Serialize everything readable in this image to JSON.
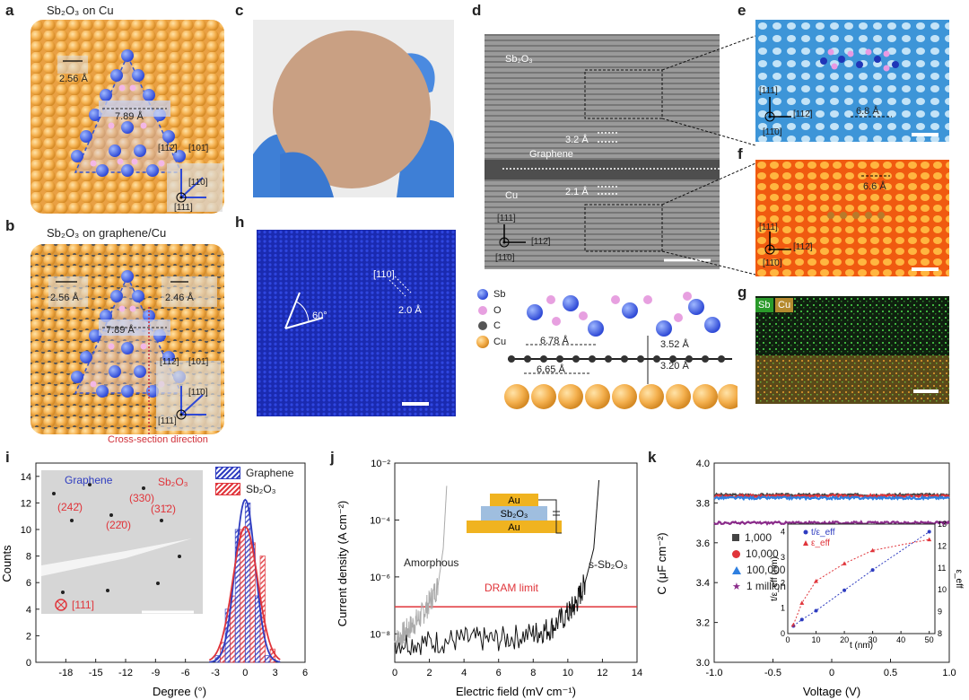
{
  "figure": {
    "panel_letters": {
      "a": "a",
      "b": "b",
      "c": "c",
      "d": "d",
      "e": "e",
      "f": "f",
      "g": "g",
      "h": "h",
      "i": "i",
      "j": "j",
      "k": "k"
    },
    "a": {
      "title": "Sb₂O₃ on Cu",
      "d1": "2.56 Å",
      "d2": "7.89 Å",
      "dir1": "[112̄]",
      "dir2": "[101̄]",
      "dir3": "[11̄0]",
      "dir4": "[111]"
    },
    "b": {
      "title": "Sb₂O₃ on graphene/Cu",
      "d1": "2.56 Å",
      "d2": "2.46 Å",
      "d3": "7.89 Å",
      "dir1": "[112̄]",
      "dir2": "[101̄]",
      "dir3": "[11̄0]",
      "dir4": "[111]",
      "cross": "Cross-section direction"
    },
    "d": {
      "sb2o3": "Sb₂O₃",
      "graphene": "Graphene",
      "cu": "Cu",
      "d32": "3.2 Å",
      "d21": "2.1 Å",
      "ax1": "[111]",
      "ax2": "[112̄]",
      "ax3": "[11̄0]"
    },
    "d_model": {
      "legend": [
        "Sb",
        "O",
        "C",
        "Cu"
      ],
      "d1": "6.78 Å",
      "d2": "6.65 Å",
      "d3": "3.52 Å",
      "d4": "3.20 Å"
    },
    "e": {
      "ax1": "[111]",
      "ax2": "[112̄]",
      "ax3": "[11̄0]",
      "dist": "6.8 Å"
    },
    "f": {
      "ax1": "[111]",
      "ax2": "[112̄]",
      "ax3": "[11̄0]",
      "dist": "6.6 Å"
    },
    "g": {
      "sb": "Sb",
      "cu": "Cu"
    },
    "h": {
      "angle": "60°",
      "dir": "[110]",
      "dist": "2.0 Å"
    }
  },
  "chart_data": [
    {
      "panel": "i",
      "type": "bar",
      "title": "",
      "xlabel": "Degree (°)",
      "ylabel": "Counts",
      "xlim": [
        -21,
        6
      ],
      "ylim": [
        0,
        15
      ],
      "xticks": [
        "-18",
        "-15",
        "-12",
        "-9",
        "-6",
        "-3",
        "0",
        "3",
        "6"
      ],
      "yticks": [
        "0",
        "2",
        "4",
        "6",
        "8",
        "10",
        "12",
        "14"
      ],
      "bin_centers": [
        -2.5,
        -1.5,
        -0.5,
        0.5,
        1.5,
        2.5
      ],
      "series": [
        {
          "name": "Graphene",
          "color": "#2e3cc0",
          "values": [
            0.5,
            4,
            10,
            12,
            5,
            0.5
          ]
        },
        {
          "name": "Sb₂O₃",
          "color": "#e0343a",
          "values": [
            1.5,
            5,
            10,
            9,
            8,
            1
          ]
        }
      ],
      "inset": {
        "graphene": "Graphene",
        "sb2o3": "Sb₂O₃",
        "spots": [
          "(330)",
          "(242̄)",
          "(31̄2)",
          "(22̄0)"
        ],
        "zone": "[111]"
      }
    },
    {
      "panel": "j",
      "type": "line",
      "xlabel": "Electric field (mV cm⁻¹)",
      "ylabel": "Current density (A cm⁻²)",
      "xlim": [
        0,
        14
      ],
      "ylog": true,
      "ylim_exp": [
        -9,
        -2
      ],
      "xticks": [
        "0",
        "2",
        "4",
        "6",
        "8",
        "10",
        "12",
        "14"
      ],
      "yticks": [
        "10⁻⁸",
        "10⁻⁶",
        "10⁻⁴",
        "10⁻²"
      ],
      "series": [
        {
          "name": "Amorphous",
          "color": "#aaaaaa",
          "x": [
            0,
            0.5,
            1,
            1.5,
            2,
            2.5,
            2.8,
            3.0
          ],
          "log_y": [
            -8.3,
            -8.0,
            -7.7,
            -7.4,
            -6.9,
            -6.3,
            -5.0,
            -2.8
          ]
        },
        {
          "name": "s-Sb₂O₃",
          "color": "#111111",
          "x": [
            0,
            2,
            4,
            6,
            8,
            9,
            10,
            10.5,
            11,
            11.5,
            11.8
          ],
          "log_y": [
            -8.3,
            -8.3,
            -8.2,
            -8.2,
            -8.0,
            -7.8,
            -7.3,
            -6.9,
            -6.2,
            -5.0,
            -2.6
          ]
        }
      ],
      "dram_limit": {
        "label": "DRAM limit",
        "log_y": -7.05,
        "color": "#e0343a"
      },
      "inset_layers": [
        "Au",
        "Sb₂O₃",
        "Au"
      ]
    },
    {
      "panel": "k",
      "type": "line",
      "xlabel": "Voltage (V)",
      "ylabel": "C (μF cm⁻²)",
      "xlim": [
        -1,
        1
      ],
      "ylim": [
        3.0,
        4.0
      ],
      "xticks": [
        "-1.0",
        "-0.5",
        "0",
        "0.5",
        "1.0"
      ],
      "yticks": [
        "3.0",
        "3.2",
        "3.4",
        "3.6",
        "3.8",
        "4.0"
      ],
      "series": [
        {
          "name": "1,000",
          "color": "#444444",
          "value": 3.84
        },
        {
          "name": "10,000",
          "color": "#e0343a",
          "value": 3.835
        },
        {
          "name": "100,000",
          "color": "#2f7fe0",
          "value": 3.825
        },
        {
          "name": "1 million",
          "color": "#8a2b8a",
          "value": 3.7
        }
      ],
      "inset": {
        "xlabel": "t (nm)",
        "ylabel_left": "t/ε_eff (nm)",
        "ylabel_right": "ε_eff",
        "xticks": [
          "0",
          "10",
          "20",
          "30",
          "40",
          "50"
        ],
        "yticks_left": [
          "0",
          "1",
          "2",
          "3",
          "4"
        ],
        "yticks_right": [
          "8",
          "9",
          "10",
          "11",
          "12",
          "13"
        ],
        "legend": [
          "t/ε_eff",
          "ε_eff"
        ],
        "t": [
          2,
          5,
          10,
          20,
          30,
          50
        ],
        "t_over_eps": [
          0.3,
          0.55,
          0.9,
          1.7,
          2.5,
          4.0
        ],
        "eps": [
          8.4,
          9.4,
          10.4,
          11.2,
          11.8,
          12.3
        ]
      }
    }
  ]
}
